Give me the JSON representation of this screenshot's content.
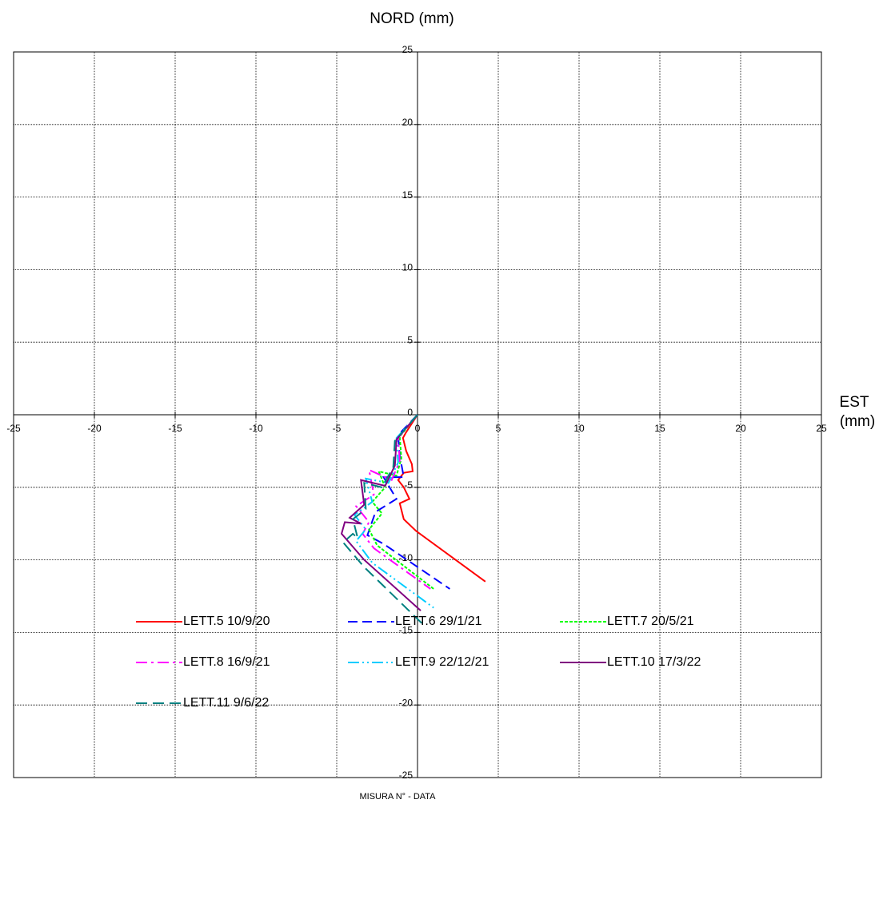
{
  "chart_data": {
    "type": "line",
    "title": "NORD (mm)",
    "x_label": [
      "EST",
      "(mm)"
    ],
    "legend_title": "MISURA N° - DATA",
    "xlim": [
      -25,
      25
    ],
    "ylim": [
      -25,
      25
    ],
    "xticks": [
      -25,
      -20,
      -15,
      -10,
      -5,
      0,
      5,
      10,
      15,
      20,
      25
    ],
    "yticks": [
      -25,
      -20,
      -15,
      -10,
      -5,
      0,
      5,
      10,
      15,
      20,
      25
    ],
    "grid": true,
    "legend": "bottom",
    "series": [
      {
        "name": "LETT.5 10/9/20",
        "color": "#ff0000",
        "dash": "none",
        "x": [
          0,
          -0.7,
          -0.9,
          -0.7,
          -0.35,
          -0.3,
          -0.85,
          -1.2,
          -0.85,
          -0.5,
          -1.1,
          -0.85,
          -0.1,
          4.2
        ],
        "values": [
          0,
          -1.2,
          -1.6,
          -2.5,
          -3.4,
          -3.9,
          -4,
          -4.5,
          -5,
          -5.8,
          -6.1,
          -7.2,
          -8,
          -11.5
        ]
      },
      {
        "name": "LETT.6 29/1/21",
        "color": "#0000ff",
        "dash": "12 6",
        "x": [
          0,
          -1.2,
          -1.1,
          -0.85,
          -2.1,
          -1.3,
          -2.6,
          -3.1,
          -2.1,
          2
        ],
        "values": [
          0,
          -1.4,
          -2.8,
          -4.3,
          -4.3,
          -5.8,
          -6.7,
          -8.3,
          -8.9,
          -12
        ]
      },
      {
        "name": "LETT.7 20/5/21",
        "color": "#00ff00",
        "dash": "4 2",
        "x": [
          0,
          -1.1,
          -1,
          -1.3,
          -2.4,
          -2,
          -2.8,
          -2.2,
          -3,
          -2.5,
          1
        ],
        "values": [
          0,
          -1.5,
          -3,
          -4.2,
          -3.9,
          -5,
          -6,
          -6.8,
          -7.9,
          -9,
          -12
        ]
      },
      {
        "name": "LETT.8 16/9/21",
        "color": "#ff00ff",
        "dash": "14 5 3 5",
        "x": [
          0,
          -1.2,
          -1.1,
          -1.6,
          -3,
          -2.7,
          -3.8,
          -3,
          -3.4,
          -2.7,
          0.8
        ],
        "values": [
          0,
          -1.6,
          -3.2,
          -4.5,
          -3.8,
          -5.5,
          -6.3,
          -7.4,
          -8.2,
          -9.2,
          -12
        ]
      },
      {
        "name": "LETT.9 22/12/21",
        "color": "#00ccff",
        "dash": "14 4 2 4 2 4",
        "x": [
          0,
          -1.3,
          -1.2,
          -1.8,
          -3.2,
          -2.8,
          -3.9,
          -3.2,
          -3.8,
          -2.8,
          1
        ],
        "values": [
          0,
          -1.6,
          -3.3,
          -4.7,
          -4.4,
          -6,
          -6.9,
          -7.9,
          -8.7,
          -10.2,
          -13.3
        ]
      },
      {
        "name": "LETT.10 17/3/22",
        "color": "#800080",
        "dash": "none",
        "x": [
          0,
          -1.3,
          -1.4,
          -2,
          -3.5,
          -3.3,
          -4.2,
          -3.5,
          -4.5,
          -4.7,
          -3.3,
          0.2
        ],
        "values": [
          0,
          -1.7,
          -3.5,
          -4.9,
          -4.5,
          -6.2,
          -7.1,
          -7.5,
          -7.4,
          -8.2,
          -10,
          -13.5
        ]
      },
      {
        "name": "LETT.11 9/6/22",
        "color": "#008080",
        "dash": "14 7",
        "x": [
          0,
          -1.4,
          -1.5,
          -2.2,
          -3.3,
          -3.2,
          -4,
          -3.7,
          -4,
          -4.6,
          -3.3,
          0.3
        ],
        "values": [
          0,
          -1.8,
          -3.6,
          -5,
          -4.7,
          -6.5,
          -7.2,
          -8.5,
          -8.2,
          -8.8,
          -10.5,
          -14.4
        ]
      }
    ]
  }
}
